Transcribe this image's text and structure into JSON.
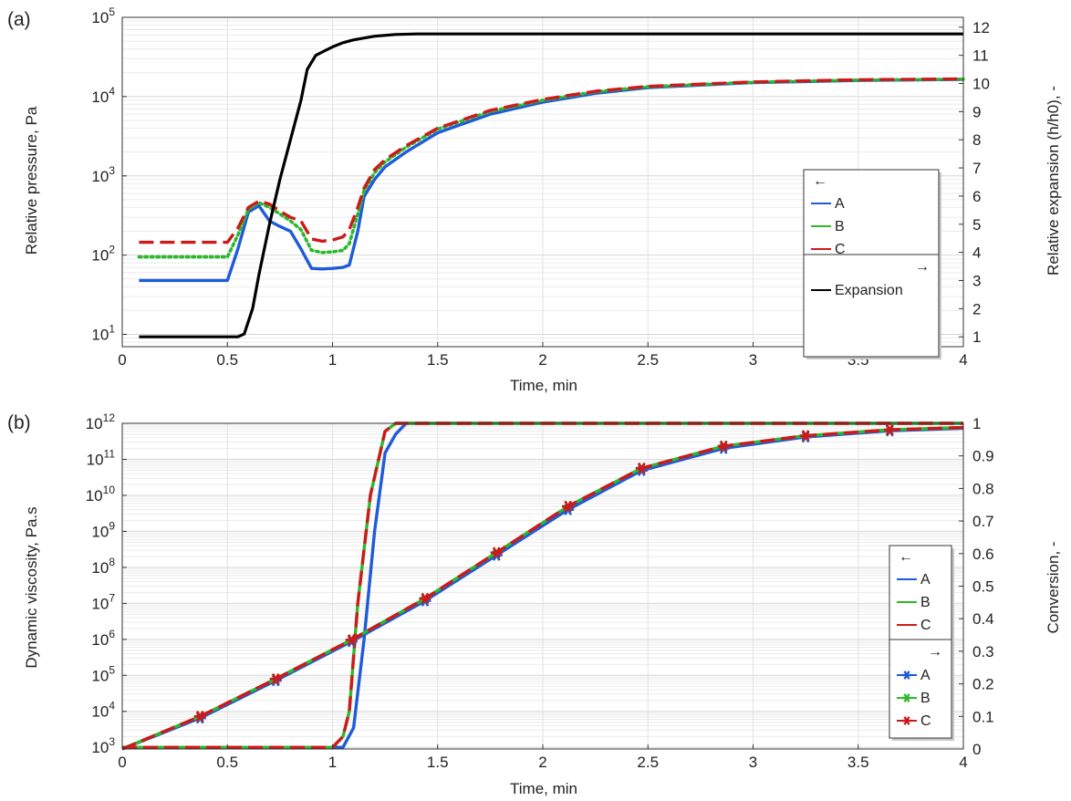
{
  "chart_data": [
    {
      "panel": "(a)",
      "type": "line",
      "xlabel": "Time, min",
      "ylabel": "Relative pressure, Pa",
      "y2label": "Relative expansion (h/h0), -",
      "xlim": [
        0,
        4
      ],
      "ylim": [
        7,
        100000
      ],
      "yscale": "log",
      "y2lim": [
        0.65,
        12.35
      ],
      "grid": true,
      "x_ticks": [
        "0",
        "0.5",
        "1",
        "1.5",
        "2",
        "2.5",
        "3",
        "3.5",
        "4"
      ],
      "y_ticks": [
        {
          "base": "10",
          "exp": "1"
        },
        {
          "base": "10",
          "exp": "2"
        },
        {
          "base": "10",
          "exp": "3"
        },
        {
          "base": "10",
          "exp": "4"
        },
        {
          "base": "10",
          "exp": "5"
        }
      ],
      "y2_ticks": [
        "1",
        "2",
        "3",
        "4",
        "5",
        "6",
        "7",
        "8",
        "9",
        "10",
        "11",
        "12"
      ],
      "legend": {
        "position": "right",
        "left_axis_arrow": "←",
        "right_axis_arrow": "→",
        "left_entries": [
          "A",
          "B",
          "C"
        ],
        "right_entries": [
          "Expansion"
        ]
      },
      "series": [
        {
          "name": "A",
          "axis": "left",
          "color": "#1f5bd9",
          "style": "solid",
          "x": [
            0.08,
            0.5,
            0.55,
            0.6,
            0.65,
            0.7,
            0.75,
            0.8,
            0.85,
            0.9,
            0.95,
            1.0,
            1.05,
            1.08,
            1.12,
            1.15,
            1.2,
            1.25,
            1.35,
            1.5,
            1.75,
            2.0,
            2.25,
            2.5,
            3.0,
            3.5,
            4.0
          ],
          "y": [
            48,
            48,
            120,
            350,
            420,
            270,
            230,
            200,
            120,
            68,
            67,
            68,
            70,
            75,
            200,
            550,
            900,
            1300,
            2000,
            3500,
            6000,
            8500,
            11000,
            13000,
            15000,
            16000,
            16500
          ]
        },
        {
          "name": "B",
          "axis": "left",
          "color": "#2db82d",
          "style": "dotted",
          "x": [
            0.08,
            0.5,
            0.55,
            0.6,
            0.65,
            0.7,
            0.75,
            0.8,
            0.85,
            0.9,
            0.95,
            1.0,
            1.05,
            1.08,
            1.12,
            1.15,
            1.2,
            1.25,
            1.35,
            1.5,
            1.75,
            2.0,
            2.25,
            2.5,
            3.0,
            3.5,
            4.0
          ],
          "y": [
            95,
            95,
            180,
            380,
            460,
            400,
            330,
            270,
            210,
            115,
            108,
            110,
            115,
            140,
            330,
            650,
            1100,
            1500,
            2300,
            3900,
            6500,
            9000,
            11500,
            13300,
            15200,
            16200,
            16600
          ]
        },
        {
          "name": "C",
          "axis": "left",
          "color": "#cc1a1a",
          "style": "dashed",
          "x": [
            0.08,
            0.5,
            0.55,
            0.6,
            0.65,
            0.7,
            0.75,
            0.8,
            0.85,
            0.9,
            0.95,
            1.0,
            1.05,
            1.08,
            1.12,
            1.15,
            1.2,
            1.25,
            1.35,
            1.5,
            1.75,
            2.0,
            2.25,
            2.5,
            3.0,
            3.5,
            4.0
          ],
          "y": [
            145,
            145,
            220,
            400,
            480,
            440,
            360,
            300,
            270,
            160,
            150,
            155,
            170,
            210,
            400,
            700,
            1200,
            1600,
            2400,
            4000,
            6700,
            9200,
            11700,
            13500,
            15300,
            16300,
            16700
          ]
        },
        {
          "name": "Expansion",
          "axis": "right",
          "color": "#000000",
          "style": "solid",
          "x": [
            0.08,
            0.5,
            0.55,
            0.58,
            0.62,
            0.65,
            0.7,
            0.75,
            0.8,
            0.85,
            0.88,
            0.92,
            0.96,
            1.0,
            1.05,
            1.1,
            1.2,
            1.3,
            1.4,
            1.5,
            2.0,
            4.0
          ],
          "y": [
            1,
            1,
            1,
            1.1,
            2.0,
            3.2,
            5.0,
            6.6,
            8.0,
            9.4,
            10.5,
            11.0,
            11.15,
            11.3,
            11.45,
            11.55,
            11.68,
            11.74,
            11.76,
            11.76,
            11.76,
            11.76
          ]
        }
      ]
    },
    {
      "panel": "(b)",
      "type": "line",
      "xlabel": "Time, min",
      "ylabel": "Dynamic viscosity, Pa.s",
      "y2label": "Conversion, -",
      "xlim": [
        0,
        4
      ],
      "ylim": [
        900,
        1000000000000
      ],
      "yscale": "log",
      "y2lim": [
        0,
        1
      ],
      "grid": true,
      "x_ticks": [
        "0",
        "0.5",
        "1",
        "1.5",
        "2",
        "2.5",
        "3",
        "3.5",
        "4"
      ],
      "y_ticks": [
        {
          "base": "10",
          "exp": "3"
        },
        {
          "base": "10",
          "exp": "4"
        },
        {
          "base": "10",
          "exp": "5"
        },
        {
          "base": "10",
          "exp": "6"
        },
        {
          "base": "10",
          "exp": "7"
        },
        {
          "base": "10",
          "exp": "8"
        },
        {
          "base": "10",
          "exp": "9"
        },
        {
          "base": "10",
          "exp": "10"
        },
        {
          "base": "10",
          "exp": "11"
        },
        {
          "base": "10",
          "exp": "12"
        }
      ],
      "y2_ticks": [
        "0",
        "0.1",
        "0.2",
        "0.3",
        "0.4",
        "0.5",
        "0.6",
        "0.7",
        "0.8",
        "0.9",
        "1"
      ],
      "legend": {
        "position": "right",
        "left_axis_arrow": "←",
        "right_axis_arrow": "→",
        "left_entries": [
          "A",
          "B",
          "C"
        ],
        "right_entries": [
          "A",
          "B",
          "C"
        ]
      },
      "series": [
        {
          "name": "A",
          "axis": "left",
          "color": "#1f5bd9",
          "style": "solid",
          "x": [
            0,
            0.5,
            1.0,
            1.05,
            1.1,
            1.15,
            1.2,
            1.25,
            1.3,
            1.35,
            1.4,
            2.0,
            3.0,
            4.0
          ],
          "y": [
            1000,
            1000,
            1000,
            1000,
            3500,
            1000000,
            1000000000,
            150000000000,
            500000000000,
            1000000000000,
            1000000000000,
            1000000000000,
            1000000000000,
            1000000000000
          ]
        },
        {
          "name": "B",
          "axis": "left",
          "color": "#2db82d",
          "style": "solid",
          "x": [
            0,
            0.5,
            1.0,
            1.05,
            1.08,
            1.12,
            1.18,
            1.25,
            1.3,
            1.35,
            2.0,
            3.0,
            4.0
          ],
          "y": [
            1000,
            1000,
            1000,
            2000,
            10000,
            10000000,
            10000000000,
            600000000000,
            1000000000000,
            1000000000000,
            1000000000000,
            1000000000000,
            1000000000000
          ]
        },
        {
          "name": "C",
          "axis": "left",
          "color": "#cc1a1a",
          "style": "dashed",
          "x": [
            0,
            0.5,
            1.0,
            1.05,
            1.08,
            1.12,
            1.18,
            1.25,
            1.3,
            1.35,
            2.0,
            3.0,
            4.0
          ],
          "y": [
            1000,
            1000,
            1000,
            2000,
            10000,
            10000000,
            10000000000,
            600000000000,
            1000000000000,
            1000000000000,
            1000000000000,
            1000000000000,
            1000000000000
          ]
        },
        {
          "name": "A",
          "axis": "right",
          "color": "#1f5bd9",
          "style": "solid",
          "marker": "asterisk",
          "x": [
            0,
            0.37,
            0.73,
            1.09,
            1.44,
            1.78,
            2.12,
            2.47,
            2.86,
            3.25,
            3.65,
            4.0
          ],
          "y": [
            0,
            0.095,
            0.21,
            0.33,
            0.455,
            0.595,
            0.735,
            0.855,
            0.923,
            0.958,
            0.977,
            0.985
          ],
          "marker_x": [
            0.37,
            0.73,
            1.09,
            1.44,
            1.78,
            2.12,
            2.47,
            2.86,
            3.25,
            3.65
          ]
        },
        {
          "name": "B",
          "axis": "right",
          "color": "#2db82d",
          "style": "solid",
          "marker": "asterisk",
          "x": [
            0,
            0.37,
            0.73,
            1.09,
            1.44,
            1.78,
            2.12,
            2.47,
            2.86,
            3.25,
            3.65,
            4.0
          ],
          "y": [
            0,
            0.1,
            0.215,
            0.335,
            0.462,
            0.603,
            0.745,
            0.862,
            0.93,
            0.962,
            0.98,
            0.987
          ],
          "marker_x": [
            0.37,
            0.73,
            1.09,
            1.44,
            1.78,
            2.12,
            2.47,
            2.86,
            3.25,
            3.65
          ]
        },
        {
          "name": "C",
          "axis": "right",
          "color": "#cc1a1a",
          "style": "dashed",
          "marker": "asterisk",
          "x": [
            0,
            0.37,
            0.73,
            1.09,
            1.44,
            1.78,
            2.12,
            2.47,
            2.86,
            3.25,
            3.65,
            4.0
          ],
          "y": [
            0,
            0.1,
            0.215,
            0.335,
            0.462,
            0.603,
            0.745,
            0.862,
            0.93,
            0.962,
            0.98,
            0.987
          ],
          "marker_x": [
            0.37,
            0.73,
            1.09,
            1.44,
            1.78,
            2.12,
            2.47,
            2.86,
            3.25,
            3.65
          ]
        }
      ]
    }
  ]
}
